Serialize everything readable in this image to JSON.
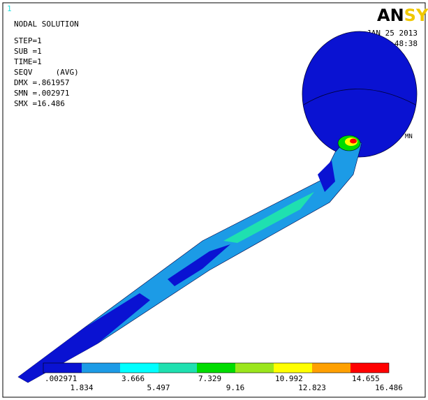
{
  "header": {
    "window_number": "1",
    "title": "NODAL SOLUTION",
    "lines": [
      "STEP=1",
      "SUB =1",
      "TIME=1",
      "SEQV     (AVG)",
      "DMX =.861957",
      "SMN =.002971",
      "SMX =16.486"
    ]
  },
  "logo": {
    "part1": "AN",
    "part2": "SYS"
  },
  "timestamp": {
    "date": "JAN 25 2013",
    "time": "11:48:38"
  },
  "marker": "MN",
  "legend": {
    "colors": [
      "#0a12d2",
      "#1c9be6",
      "#00ffff",
      "#1fe0b0",
      "#00dc00",
      "#9be61c",
      "#ffff00",
      "#ffa000",
      "#ff0000"
    ],
    "labels": [
      ".002971",
      "1.834",
      "3.666",
      "5.497",
      "7.329",
      "9.16",
      "10.992",
      "12.823",
      "14.655",
      "16.486"
    ]
  }
}
